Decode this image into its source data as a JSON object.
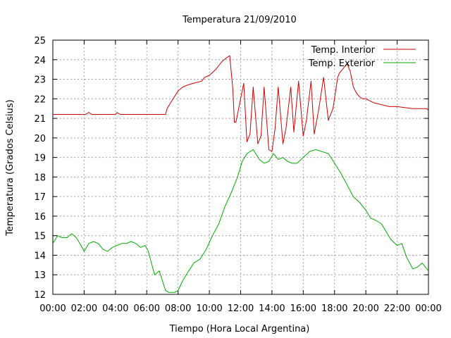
{
  "chart_data": {
    "type": "line",
    "title": "Temperatura 21/09/2010",
    "xlabel": "Tiempo (Hora Local Argentina)",
    "ylabel": "Temperatura (Grados Celsius)",
    "xlim": [
      0,
      24
    ],
    "ylim": [
      12,
      25
    ],
    "grid": true,
    "legend_position": "top-right",
    "x_tick_labels": [
      "00:00",
      "02:00",
      "04:00",
      "06:00",
      "08:00",
      "10:00",
      "12:00",
      "14:00",
      "16:00",
      "18:00",
      "20:00",
      "22:00",
      "00:00"
    ],
    "y_tick_labels": [
      "12",
      "13",
      "14",
      "15",
      "16",
      "17",
      "18",
      "19",
      "20",
      "21",
      "22",
      "23",
      "24",
      "25"
    ],
    "series": [
      {
        "name": "Temp. Interior",
        "color": "#d00000",
        "x": [
          0,
          2.1,
          2.3,
          2.5,
          2.7,
          4,
          4.1,
          4.3,
          4.5,
          6,
          7.2,
          7.3,
          7.6,
          8,
          8.3,
          8.6,
          9,
          9.5,
          9.7,
          10,
          10.4,
          10.8,
          11.1,
          11.3,
          11.5,
          11.6,
          11.7,
          12.2,
          12.4,
          12.6,
          12.8,
          13.1,
          13.3,
          13.5,
          13.8,
          14,
          14.2,
          14.4,
          14.7,
          14.9,
          15.2,
          15.4,
          15.7,
          16,
          16.2,
          16.5,
          16.7,
          17,
          17.3,
          17.6,
          17.9,
          18.2,
          18.3,
          18.5,
          18.8,
          19,
          19.2,
          19.4,
          19.6,
          19.8,
          20,
          20.5,
          21,
          21.5,
          22,
          23,
          23.5,
          23.9,
          24
        ],
        "values": [
          21.2,
          21.2,
          21.3,
          21.2,
          21.2,
          21.2,
          21.3,
          21.2,
          21.2,
          21.2,
          21.2,
          21.5,
          21.9,
          22.4,
          22.6,
          22.7,
          22.8,
          22.9,
          23.1,
          23.2,
          23.5,
          23.9,
          24.1,
          24.2,
          22.5,
          20.8,
          20.8,
          22.8,
          19.8,
          20.2,
          22.6,
          19.7,
          20.1,
          22.6,
          19.4,
          19.3,
          20.5,
          22.6,
          19.7,
          20.5,
          22.6,
          20.3,
          22.9,
          20.1,
          20.9,
          22.9,
          20.2,
          21.5,
          23.1,
          20.9,
          21.5,
          23.1,
          23.3,
          23.5,
          23.8,
          23.4,
          22.6,
          22.3,
          22.1,
          22.0,
          22.0,
          21.8,
          21.7,
          21.6,
          21.6,
          21.5,
          21.5,
          21.5,
          21.4
        ]
      },
      {
        "name": "Temp. Exterior",
        "color": "#00aa00",
        "x": [
          0,
          0.3,
          0.6,
          0.9,
          1.2,
          1.5,
          1.8,
          2,
          2.3,
          2.6,
          2.9,
          3.2,
          3.5,
          3.8,
          4.1,
          4.4,
          4.7,
          5,
          5.3,
          5.6,
          5.9,
          6.1,
          6.3,
          6.5,
          6.8,
          7,
          7.2,
          7.4,
          7.6,
          7.8,
          8,
          8.3,
          8.6,
          9,
          9.4,
          9.8,
          10.2,
          10.6,
          11,
          11.4,
          11.8,
          12.1,
          12.4,
          12.8,
          13.2,
          13.5,
          13.8,
          14.1,
          14.4,
          14.7,
          15,
          15.3,
          15.6,
          16,
          16.4,
          16.8,
          17.2,
          17.6,
          18,
          18.4,
          18.8,
          19.2,
          19.6,
          20,
          20.3,
          20.6,
          21,
          21.3,
          21.6,
          22,
          22.3,
          22.6,
          23,
          23.3,
          23.6,
          24
        ],
        "values": [
          14.6,
          15.0,
          14.9,
          14.9,
          15.1,
          14.9,
          14.5,
          14.2,
          14.6,
          14.7,
          14.6,
          14.3,
          14.2,
          14.4,
          14.5,
          14.6,
          14.6,
          14.7,
          14.6,
          14.4,
          14.5,
          14.2,
          13.6,
          13.0,
          13.2,
          12.7,
          12.2,
          12.1,
          12.1,
          12.1,
          12.2,
          12.7,
          13.1,
          13.6,
          13.8,
          14.3,
          15.0,
          15.6,
          16.5,
          17.2,
          18.0,
          18.8,
          19.2,
          19.4,
          18.9,
          18.7,
          18.8,
          19.2,
          18.9,
          19.0,
          18.8,
          18.7,
          18.7,
          19.0,
          19.3,
          19.4,
          19.3,
          19.2,
          18.7,
          18.2,
          17.6,
          17.0,
          16.7,
          16.3,
          15.9,
          15.8,
          15.6,
          15.2,
          14.8,
          14.5,
          14.6,
          13.9,
          13.3,
          13.4,
          13.6,
          13.2
        ]
      }
    ]
  }
}
